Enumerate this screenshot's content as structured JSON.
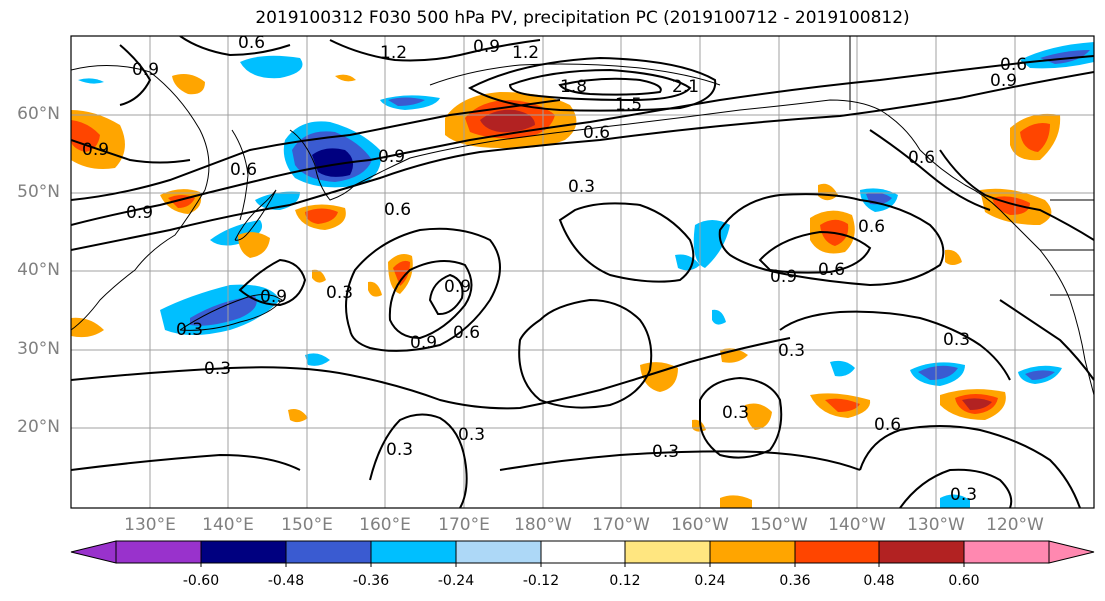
{
  "title": "2019100312 F030 500 hPa PV, precipitation PC (2019100712 - 2019100812)",
  "lat_labels": [
    "60°N",
    "50°N",
    "40°N",
    "30°N",
    "20°N"
  ],
  "lon_labels": [
    "130°E",
    "140°E",
    "150°E",
    "160°E",
    "170°E",
    "180°W",
    "170°W",
    "160°W",
    "150°W",
    "140°W",
    "130°W",
    "120°W"
  ],
  "colorbar": {
    "ticks": [
      "-0.60",
      "-0.48",
      "-0.36",
      "-0.24",
      "-0.12",
      "0.12",
      "0.24",
      "0.36",
      "0.48",
      "0.60"
    ],
    "colors": [
      "#9932cc",
      "#000080",
      "#3a5bd1",
      "#00bfff",
      "#add8f7",
      "#ffffff",
      "#ffe680",
      "#ffa500",
      "#ff4500",
      "#b22222",
      "#ff88b0"
    ]
  },
  "contour_labels": [
    {
      "v": "0.6"
    },
    {
      "v": "1.2"
    },
    {
      "v": "0.9"
    },
    {
      "v": "1.2"
    },
    {
      "v": "1.8"
    },
    {
      "v": "2.1"
    },
    {
      "v": "1.5"
    },
    {
      "v": "0.6"
    },
    {
      "v": "0.9"
    },
    {
      "v": "0.6"
    },
    {
      "v": "0.9"
    },
    {
      "v": "0.9"
    },
    {
      "v": "0.3"
    },
    {
      "v": "0.6"
    },
    {
      "v": "0.9"
    },
    {
      "v": "0.3"
    },
    {
      "v": "0.3"
    },
    {
      "v": "0.9"
    },
    {
      "v": "0.6"
    },
    {
      "v": "0.9"
    },
    {
      "v": "0.3"
    },
    {
      "v": "0.9"
    },
    {
      "v": "0.6"
    },
    {
      "v": "0.6"
    },
    {
      "v": "0.3"
    },
    {
      "v": "0.3"
    },
    {
      "v": "0.3"
    },
    {
      "v": "0.3"
    },
    {
      "v": "0.3"
    },
    {
      "v": "0.6"
    },
    {
      "v": "0.3"
    },
    {
      "v": "0.9"
    },
    {
      "v": "0.6"
    },
    {
      "v": "0.9"
    },
    {
      "v": "0.3"
    },
    {
      "v": "0.6"
    }
  ]
}
